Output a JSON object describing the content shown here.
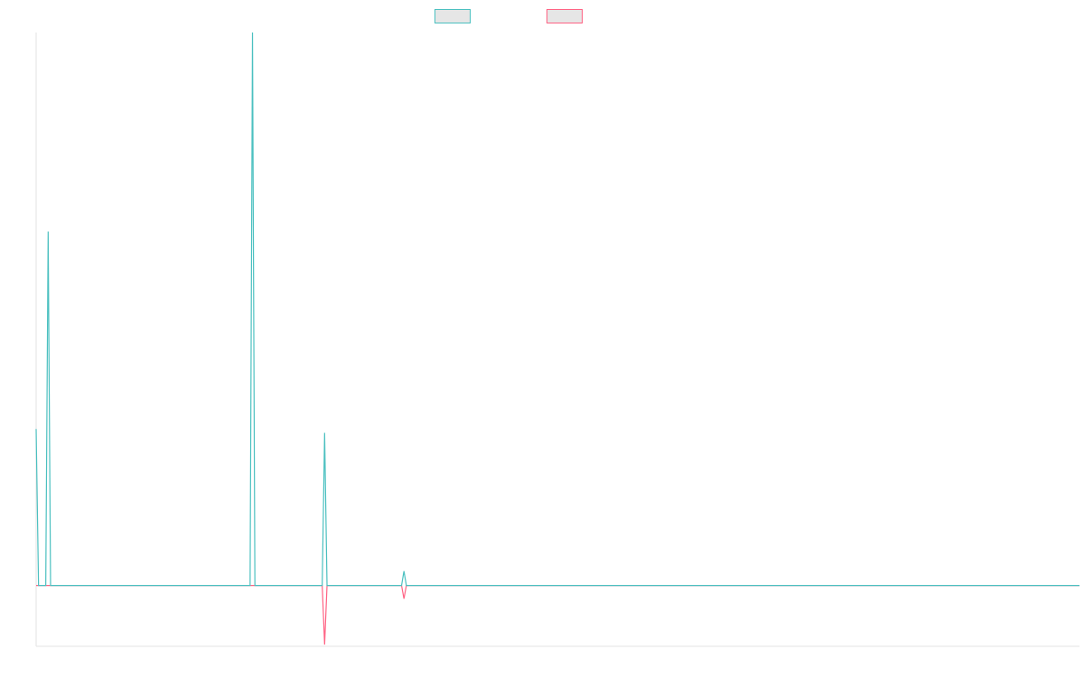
{
  "colors": {
    "series_a": "#4bc0c0",
    "series_b": "#ff6384",
    "legend_fill": "#e6e6e6",
    "axis": "#e3e3e3",
    "background": "#ffffff"
  },
  "chart_data": {
    "type": "line",
    "title": "",
    "xlabel": "",
    "ylabel": "",
    "grid": false,
    "legend_position": "top-center",
    "x_count": 435,
    "ylim": [
      -0.11,
      1.0
    ],
    "series": [
      {
        "name": "",
        "color": "#4bc0c0",
        "baseline": 0,
        "points": [
          [
            0,
            0.283
          ],
          [
            1,
            0
          ],
          [
            4,
            0
          ],
          [
            5,
            0.64
          ],
          [
            6,
            0
          ],
          [
            89,
            0
          ],
          [
            90,
            1.0
          ],
          [
            91,
            0
          ],
          [
            119,
            0
          ],
          [
            120,
            0.276
          ],
          [
            121,
            0
          ],
          [
            152,
            0
          ],
          [
            153,
            0.026
          ],
          [
            154,
            0
          ]
        ]
      },
      {
        "name": "",
        "color": "#ff6384",
        "baseline": 0,
        "points": [
          [
            119,
            0
          ],
          [
            120,
            -0.107
          ],
          [
            121,
            0
          ],
          [
            152,
            0
          ],
          [
            153,
            -0.024
          ],
          [
            154,
            0
          ]
        ]
      }
    ]
  }
}
